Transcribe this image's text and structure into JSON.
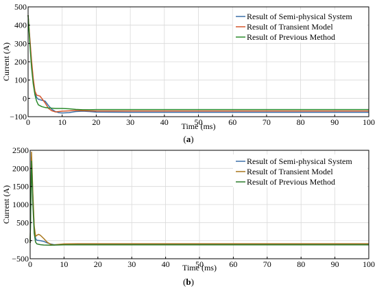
{
  "chart_data": [
    {
      "type": "line",
      "caption_open": "(",
      "caption_letter": "a",
      "caption_close": ")",
      "xlabel": "Time (ms)",
      "ylabel": "Current (A)",
      "xlim": [
        0,
        100
      ],
      "ylim": [
        -100,
        500
      ],
      "xticks": [
        0,
        10,
        20,
        30,
        40,
        50,
        60,
        70,
        80,
        90,
        100
      ],
      "yticks": [
        -100,
        0,
        100,
        200,
        300,
        400,
        500
      ],
      "grid": true,
      "legend_position": "top-right",
      "series": [
        {
          "name": "Result of Semi-physical System",
          "color": "#3a6fa8",
          "points": [
            [
              0,
              455
            ],
            [
              0.5,
              320
            ],
            [
              1,
              190
            ],
            [
              1.5,
              95
            ],
            [
              2,
              35
            ],
            [
              2.5,
              5
            ],
            [
              3,
              -5
            ],
            [
              4,
              -10
            ],
            [
              5,
              -15
            ],
            [
              6,
              -40
            ],
            [
              7,
              -60
            ],
            [
              8,
              -72
            ],
            [
              9,
              -78
            ],
            [
              10,
              -80
            ],
            [
              12,
              -78
            ],
            [
              14,
              -72
            ],
            [
              16,
              -70
            ],
            [
              18,
              -72
            ],
            [
              20,
              -75
            ],
            [
              30,
              -76
            ],
            [
              50,
              -76
            ],
            [
              70,
              -76
            ],
            [
              100,
              -76
            ]
          ]
        },
        {
          "name": "Result of Transient Model",
          "color": "#d4552a",
          "points": [
            [
              0,
              455
            ],
            [
              0.5,
              330
            ],
            [
              1,
              210
            ],
            [
              1.5,
              110
            ],
            [
              2,
              40
            ],
            [
              2.5,
              18
            ],
            [
              3,
              15
            ],
            [
              3.5,
              12
            ],
            [
              4,
              0
            ],
            [
              5,
              -25
            ],
            [
              6,
              -55
            ],
            [
              7,
              -68
            ],
            [
              8,
              -74
            ],
            [
              9,
              -72
            ],
            [
              10,
              -70
            ],
            [
              12,
              -68
            ],
            [
              14,
              -66
            ],
            [
              16,
              -67
            ],
            [
              18,
              -68
            ],
            [
              20,
              -69
            ],
            [
              30,
              -69
            ],
            [
              50,
              -69
            ],
            [
              70,
              -69
            ],
            [
              100,
              -69
            ]
          ]
        },
        {
          "name": "Result of Previous Method",
          "color": "#2b8a2b",
          "points": [
            [
              0,
              455
            ],
            [
              0.5,
              300
            ],
            [
              1,
              170
            ],
            [
              1.5,
              80
            ],
            [
              2,
              20
            ],
            [
              2.5,
              -15
            ],
            [
              3,
              -35
            ],
            [
              4,
              -45
            ],
            [
              5,
              -50
            ],
            [
              6,
              -52
            ],
            [
              8,
              -55
            ],
            [
              10,
              -55
            ],
            [
              12,
              -57
            ],
            [
              14,
              -60
            ],
            [
              16,
              -62
            ],
            [
              18,
              -62
            ],
            [
              20,
              -61
            ],
            [
              30,
              -61
            ],
            [
              50,
              -61
            ],
            [
              70,
              -61
            ],
            [
              100,
              -61
            ]
          ]
        }
      ]
    },
    {
      "type": "line",
      "caption_open": "(",
      "caption_letter": "b",
      "caption_close": ")",
      "xlabel": "Time (ms)",
      "ylabel": "Current (A)",
      "xlim": [
        0,
        100
      ],
      "ylim": [
        -500,
        2500
      ],
      "xticks": [
        0,
        10,
        20,
        30,
        40,
        50,
        60,
        70,
        80,
        90,
        100
      ],
      "yticks": [
        -500,
        0,
        500,
        1000,
        1500,
        2000,
        2500
      ],
      "grid": true,
      "legend_position": "top-right",
      "series": [
        {
          "name": "Result of Semi-physical System",
          "color": "#3a6fa8",
          "points": [
            [
              0,
              -60
            ],
            [
              0.4,
              2300
            ],
            [
              0.8,
              1200
            ],
            [
              1.2,
              350
            ],
            [
              1.6,
              60
            ],
            [
              2,
              10
            ],
            [
              3,
              0
            ],
            [
              4,
              -20
            ],
            [
              5,
              -60
            ],
            [
              6,
              -90
            ],
            [
              7,
              -110
            ],
            [
              8,
              -110
            ],
            [
              10,
              -105
            ],
            [
              14,
              -100
            ],
            [
              20,
              -100
            ],
            [
              50,
              -100
            ],
            [
              100,
              -100
            ]
          ]
        },
        {
          "name": "Result of Transient Model",
          "color": "#a8761a",
          "points": [
            [
              0,
              -60
            ],
            [
              0.4,
              2450
            ],
            [
              0.8,
              1300
            ],
            [
              1.2,
              400
            ],
            [
              1.6,
              120
            ],
            [
              2,
              150
            ],
            [
              2.5,
              175
            ],
            [
              3,
              150
            ],
            [
              4,
              60
            ],
            [
              5,
              -40
            ],
            [
              6,
              -100
            ],
            [
              7,
              -120
            ],
            [
              8,
              -105
            ],
            [
              10,
              -90
            ],
            [
              14,
              -85
            ],
            [
              20,
              -85
            ],
            [
              50,
              -85
            ],
            [
              100,
              -85
            ]
          ]
        },
        {
          "name": "Result of Previous Method",
          "color": "#2b7a2b",
          "points": [
            [
              0,
              -60
            ],
            [
              0.4,
              2200
            ],
            [
              0.8,
              1000
            ],
            [
              1.2,
              200
            ],
            [
              1.6,
              -40
            ],
            [
              2,
              -90
            ],
            [
              3,
              -110
            ],
            [
              4,
              -120
            ],
            [
              6,
              -125
            ],
            [
              8,
              -120
            ],
            [
              10,
              -115
            ],
            [
              20,
              -115
            ],
            [
              50,
              -115
            ],
            [
              100,
              -115
            ]
          ]
        }
      ]
    }
  ]
}
